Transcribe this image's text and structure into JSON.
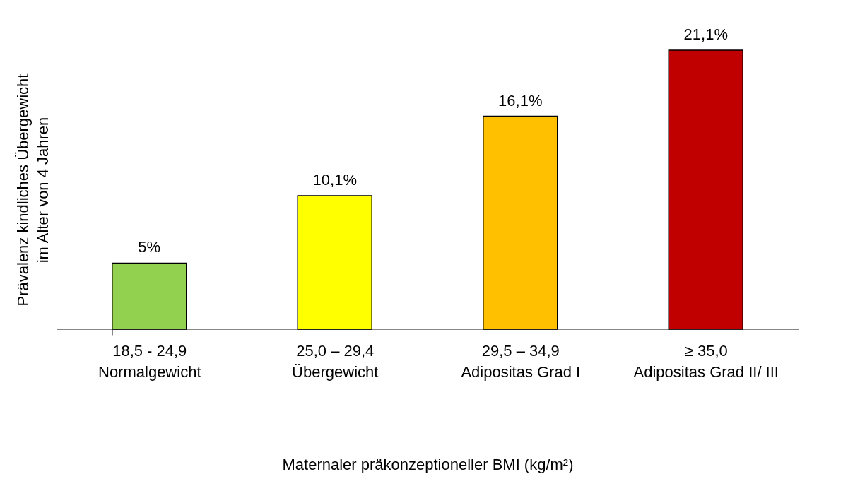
{
  "chart_data": {
    "type": "bar",
    "categories": [
      "18,5 - 24,9\nNormalgewicht",
      "25,0 – 29,4\nÜbergewicht",
      "29,5 – 34,9\nAdipositas Grad I",
      "≥ 35,0\nAdipositas Grad II/ III"
    ],
    "values": [
      5,
      10.1,
      16.1,
      21.1
    ],
    "colors": [
      "#92d050",
      "#ffff00",
      "#ffc000",
      "#c00000"
    ],
    "value_labels": [
      "5%",
      "10,1%",
      "16,1%",
      "21,1%"
    ],
    "xlabel": "Maternaler präkonzeptioneller BMI (kg/m²)",
    "ylabel": "Prävalenz kindliches Übergewicht\nim Alter von 4 Jahren",
    "tick_labels": "x",
    "grid": false
  }
}
